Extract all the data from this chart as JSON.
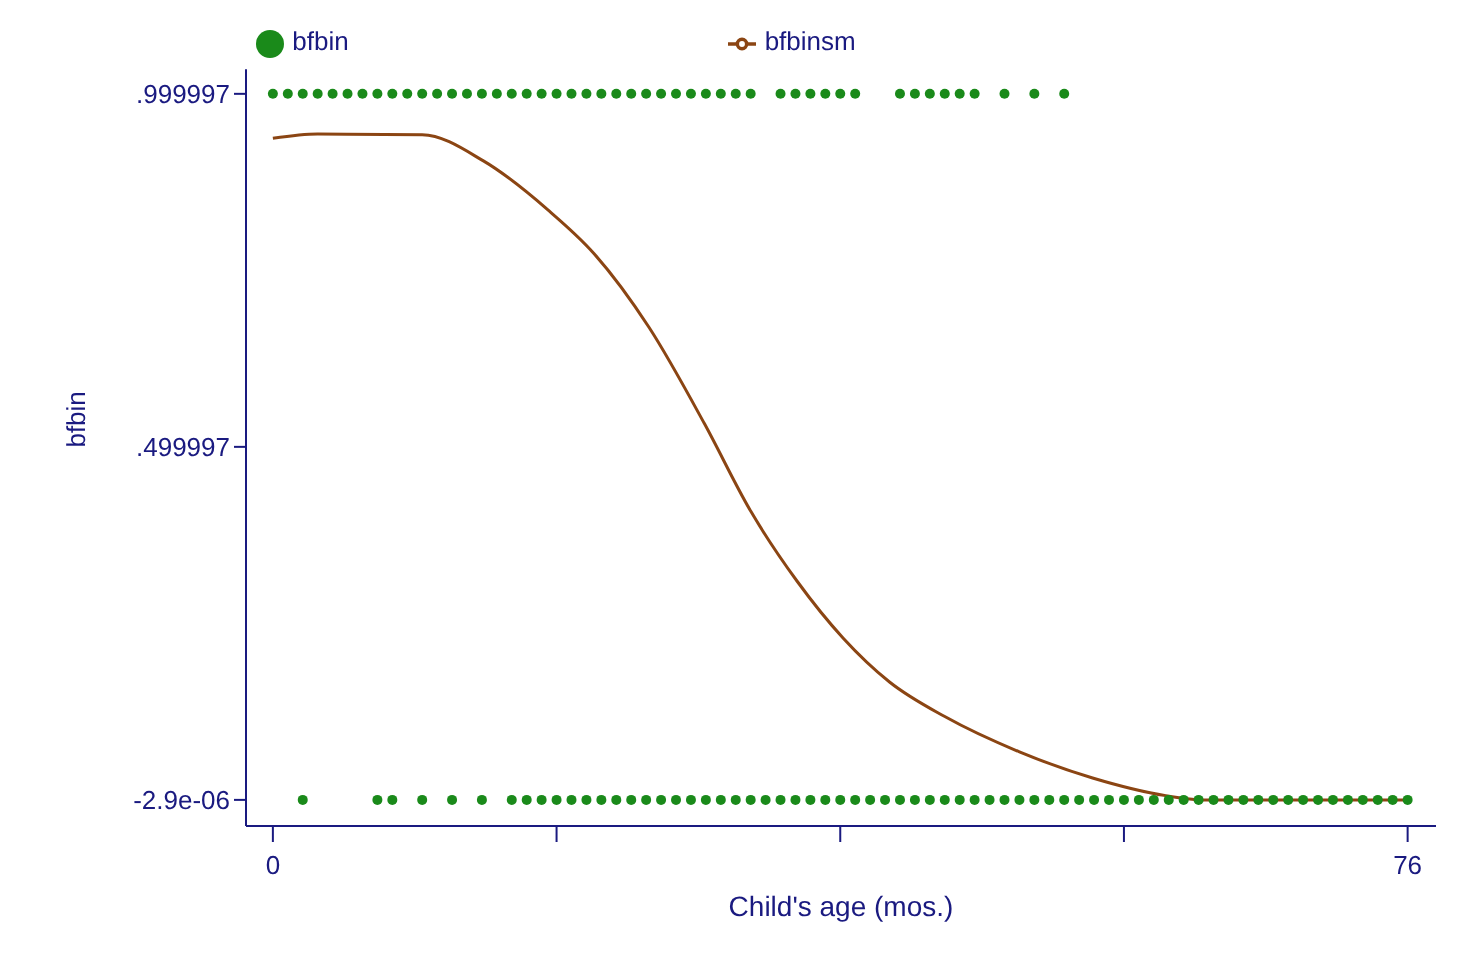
{
  "chart_data": {
    "type": "scatter",
    "xlabel": "Child's age (mos.)",
    "ylabel": "bfbin",
    "xlim": [
      -1.8,
      77.9
    ],
    "ylim": [
      -0.037,
      1.035
    ],
    "xticks": [
      0,
      {
        "value": 19,
        "label": null
      },
      {
        "value": 38,
        "label": null
      },
      {
        "value": 57,
        "label": null
      },
      76
    ],
    "yticks": [
      {
        "value": -2.9e-06,
        "label": "-2.9e-06"
      },
      {
        "value": 0.499997,
        "label": ".499997"
      },
      {
        "value": 0.999997,
        "label": ".999997"
      }
    ],
    "grid": false,
    "legend": "top",
    "series": [
      {
        "name": "bfbin",
        "marker": "circle",
        "color": "#1a8a1a",
        "x": [
          0,
          1,
          2,
          3,
          4,
          5,
          6,
          7,
          8,
          9,
          10,
          11,
          12,
          13,
          14,
          15,
          16,
          17,
          18,
          19,
          20,
          21,
          22,
          23,
          24,
          25,
          26,
          27,
          28,
          29,
          30,
          31,
          32,
          34,
          35,
          36,
          37,
          38,
          39,
          42,
          43,
          44,
          45,
          46,
          47,
          49,
          51,
          53,
          2,
          7,
          8,
          10,
          12,
          14,
          16,
          17,
          18,
          19,
          20,
          21,
          22,
          23,
          24,
          25,
          26,
          27,
          28,
          29,
          30,
          31,
          32,
          33,
          34,
          35,
          36,
          37,
          38,
          39,
          40,
          41,
          42,
          43,
          44,
          45,
          46,
          47,
          48,
          49,
          50,
          51,
          52,
          53,
          54,
          55,
          56,
          57,
          58,
          59,
          60,
          61,
          62,
          63,
          64,
          65,
          66,
          67,
          68,
          69,
          70,
          71,
          72,
          73,
          74,
          75,
          76
        ],
        "values": [
          1,
          1,
          1,
          1,
          1,
          1,
          1,
          1,
          1,
          1,
          1,
          1,
          1,
          1,
          1,
          1,
          1,
          1,
          1,
          1,
          1,
          1,
          1,
          1,
          1,
          1,
          1,
          1,
          1,
          1,
          1,
          1,
          1,
          1,
          1,
          1,
          1,
          1,
          1,
          1,
          1,
          1,
          1,
          1,
          1,
          1,
          1,
          1,
          0,
          0,
          0,
          0,
          0,
          0,
          0,
          0,
          0,
          0,
          0,
          0,
          0,
          0,
          0,
          0,
          0,
          0,
          0,
          0,
          0,
          0,
          0,
          0,
          0,
          0,
          0,
          0,
          0,
          0,
          0,
          0,
          0,
          0,
          0,
          0,
          0,
          0,
          0,
          0,
          0,
          0,
          0,
          0,
          0,
          0,
          0,
          0,
          0,
          0,
          0,
          0,
          0,
          0,
          0,
          0,
          0,
          0,
          0,
          0,
          0,
          0,
          0,
          0,
          0,
          0,
          0
        ]
      },
      {
        "name": "bfbinsm",
        "type": "line",
        "marker": "none",
        "color": "#8b4513",
        "line_style": "solid",
        "x": [
          0,
          3,
          10,
          14.1,
          18.4,
          21.5,
          25.2,
          28.9,
          32,
          35.1,
          38.2,
          41.3,
          45,
          50,
          54.9,
          59.8,
          62.3,
          76
        ],
        "values": [
          0.937,
          0.943,
          0.942,
          0.905,
          0.836,
          0.774,
          0.669,
          0.533,
          0.409,
          0.31,
          0.229,
          0.167,
          0.118,
          0.068,
          0.031,
          0.006,
          0,
          0
        ]
      }
    ]
  }
}
